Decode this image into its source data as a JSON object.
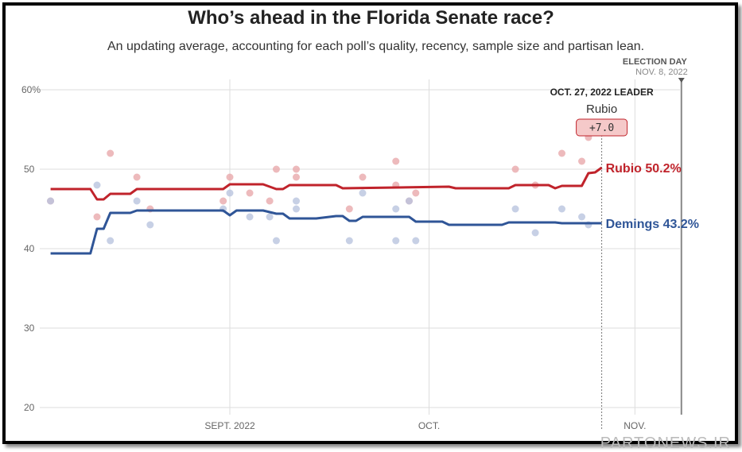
{
  "chart_data": {
    "type": "line",
    "title": "Who’s ahead in the Florida Senate race?",
    "subtitle": "An updating average, accounting for each poll’s quality, recency, sample size and partisan lean.",
    "ylim": [
      20,
      60
    ],
    "y_ticks": [
      "60%",
      "50",
      "40",
      "30",
      "20"
    ],
    "y_tick_values": [
      60,
      50,
      40,
      30,
      20
    ],
    "x_range": [
      "2022-08-05",
      "2022-11-10"
    ],
    "x_ticks": [
      {
        "date": "2022-09-01",
        "label": "SEPT. 2022"
      },
      {
        "date": "2022-10-01",
        "label": "OCT."
      },
      {
        "date": "2022-11-01",
        "label": "NOV."
      }
    ],
    "grid": true,
    "election_day": {
      "date": "2022-11-08",
      "label": "ELECTION DAY",
      "sublabel": "NOV. 8, 2022"
    },
    "leader": {
      "date": "2022-10-27",
      "heading": "OCT. 27, 2022 LEADER",
      "name": "Rubio",
      "margin": "+7.0"
    },
    "series": [
      {
        "name": "Rubio",
        "end_label": "Rubio 50.2%",
        "color": "#c0232b",
        "dot_color": "#e8a9ab",
        "points": [
          [
            "2022-08-05",
            47.5
          ],
          [
            "2022-08-11",
            47.5
          ],
          [
            "2022-08-12",
            46.2
          ],
          [
            "2022-08-13",
            46.2
          ],
          [
            "2022-08-14",
            46.9
          ],
          [
            "2022-08-17",
            46.9
          ],
          [
            "2022-08-18",
            47.5
          ],
          [
            "2022-08-31",
            47.5
          ],
          [
            "2022-09-01",
            48.1
          ],
          [
            "2022-09-06",
            48.1
          ],
          [
            "2022-09-08",
            47.5
          ],
          [
            "2022-09-09",
            47.5
          ],
          [
            "2022-09-10",
            48.0
          ],
          [
            "2022-09-17",
            48.0
          ],
          [
            "2022-09-18",
            47.6
          ],
          [
            "2022-10-04",
            47.8
          ],
          [
            "2022-10-05",
            47.6
          ],
          [
            "2022-10-13",
            47.6
          ],
          [
            "2022-10-14",
            48.0
          ],
          [
            "2022-10-19",
            48.0
          ],
          [
            "2022-10-20",
            47.6
          ],
          [
            "2022-10-21",
            47.9
          ],
          [
            "2022-10-24",
            47.9
          ],
          [
            "2022-10-25",
            49.5
          ],
          [
            "2022-10-26",
            49.6
          ],
          [
            "2022-10-27",
            50.2
          ]
        ],
        "polls": [
          [
            "2022-08-05",
            46
          ],
          [
            "2022-08-12",
            44
          ],
          [
            "2022-08-14",
            52
          ],
          [
            "2022-08-18",
            49
          ],
          [
            "2022-08-20",
            45
          ],
          [
            "2022-08-31",
            46
          ],
          [
            "2022-09-01",
            49
          ],
          [
            "2022-09-04",
            47
          ],
          [
            "2022-09-07",
            46
          ],
          [
            "2022-09-08",
            50
          ],
          [
            "2022-09-11",
            50
          ],
          [
            "2022-09-11",
            49
          ],
          [
            "2022-09-19",
            45
          ],
          [
            "2022-09-21",
            49
          ],
          [
            "2022-09-26",
            51
          ],
          [
            "2022-09-26",
            48
          ],
          [
            "2022-09-28",
            46
          ],
          [
            "2022-09-29",
            47
          ],
          [
            "2022-10-14",
            50
          ],
          [
            "2022-10-17",
            48
          ],
          [
            "2022-10-21",
            52
          ],
          [
            "2022-10-24",
            51
          ],
          [
            "2022-10-25",
            54
          ]
        ]
      },
      {
        "name": "Demings",
        "end_label": "Demings 43.2%",
        "color": "#2f5597",
        "dot_color": "#b9c4de",
        "points": [
          [
            "2022-08-05",
            39.4
          ],
          [
            "2022-08-11",
            39.4
          ],
          [
            "2022-08-12",
            42.5
          ],
          [
            "2022-08-13",
            42.5
          ],
          [
            "2022-08-14",
            44.5
          ],
          [
            "2022-08-17",
            44.5
          ],
          [
            "2022-08-18",
            44.8
          ],
          [
            "2022-08-31",
            44.8
          ],
          [
            "2022-09-01",
            44.2
          ],
          [
            "2022-09-02",
            44.8
          ],
          [
            "2022-09-06",
            44.8
          ],
          [
            "2022-09-08",
            44.4
          ],
          [
            "2022-09-09",
            44.4
          ],
          [
            "2022-09-10",
            43.8
          ],
          [
            "2022-09-14",
            43.8
          ],
          [
            "2022-09-17",
            44.1
          ],
          [
            "2022-09-18",
            44.1
          ],
          [
            "2022-09-19",
            43.5
          ],
          [
            "2022-09-20",
            43.5
          ],
          [
            "2022-09-21",
            44.0
          ],
          [
            "2022-09-28",
            44.0
          ],
          [
            "2022-09-29",
            43.4
          ],
          [
            "2022-10-03",
            43.4
          ],
          [
            "2022-10-04",
            43.0
          ],
          [
            "2022-10-12",
            43.0
          ],
          [
            "2022-10-13",
            43.3
          ],
          [
            "2022-10-20",
            43.3
          ],
          [
            "2022-10-21",
            43.2
          ],
          [
            "2022-10-27",
            43.2
          ]
        ],
        "polls": [
          [
            "2022-08-05",
            46
          ],
          [
            "2022-08-12",
            48
          ],
          [
            "2022-08-14",
            41
          ],
          [
            "2022-08-18",
            46
          ],
          [
            "2022-08-20",
            43
          ],
          [
            "2022-08-31",
            45
          ],
          [
            "2022-09-01",
            47
          ],
          [
            "2022-09-04",
            44
          ],
          [
            "2022-09-07",
            44
          ],
          [
            "2022-09-08",
            41
          ],
          [
            "2022-09-11",
            46
          ],
          [
            "2022-09-11",
            45
          ],
          [
            "2022-09-19",
            41
          ],
          [
            "2022-09-21",
            47
          ],
          [
            "2022-09-26",
            45
          ],
          [
            "2022-09-26",
            41
          ],
          [
            "2022-09-28",
            46
          ],
          [
            "2022-09-29",
            41
          ],
          [
            "2022-10-14",
            45
          ],
          [
            "2022-10-17",
            42
          ],
          [
            "2022-10-21",
            45
          ],
          [
            "2022-10-24",
            44
          ],
          [
            "2022-10-25",
            43
          ]
        ]
      }
    ]
  },
  "watermark": "PARTONEWS.IR"
}
